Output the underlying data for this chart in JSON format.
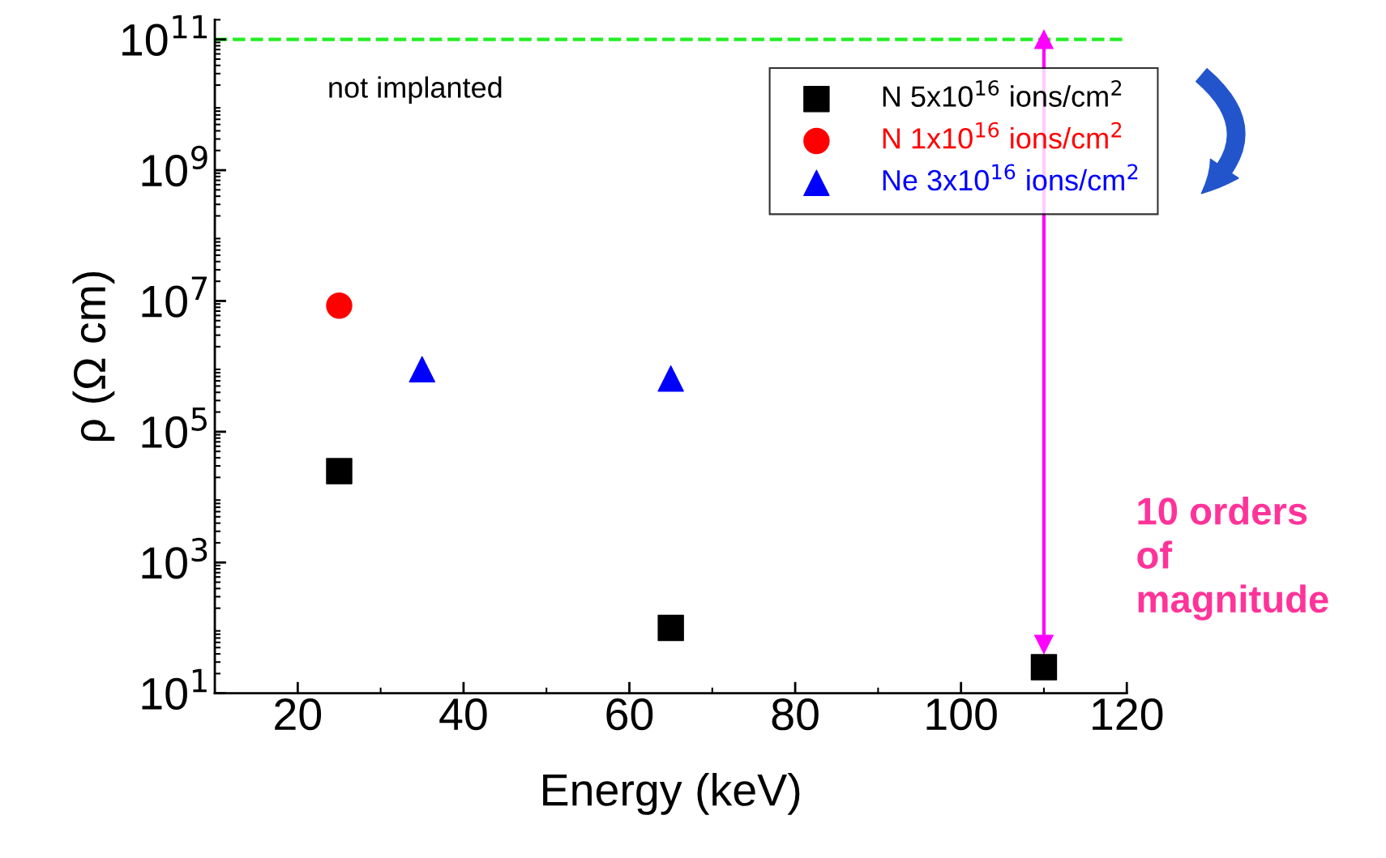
{
  "chart_data": {
    "type": "scatter",
    "xlabel": "Energy (keV)",
    "ylabel": "ρ (Ω cm)",
    "log": "y",
    "xlim": [
      10,
      120
    ],
    "xticks": [
      20,
      40,
      60,
      80,
      100,
      120
    ],
    "ylim": [
      10,
      200000000000
    ],
    "yticks": [
      {
        "value": 10,
        "label": "10$^{1}$"
      },
      {
        "value": 1000,
        "label": "10$^{3}$"
      },
      {
        "value": 100000,
        "label": "10$^{5}$"
      },
      {
        "value": 10000000,
        "label": "10$^{7}$"
      },
      {
        "value": 1000000000,
        "label": "10$^{9}$"
      },
      {
        "value": 100000000000,
        "label": "10$^{11}$"
      }
    ],
    "series": [
      {
        "name": "N 5x10$^{16}$ ions/cm$^{2}$",
        "color": "#000000",
        "marker": "square",
        "x": [
          25,
          65,
          110
        ],
        "values": [
          25000,
          100,
          25
        ]
      },
      {
        "name": "N 1x10$^{16}$ ions/cm$^{2}$",
        "color": "#ff0000",
        "marker": "circle",
        "x": [
          25
        ],
        "values": [
          8500000
        ]
      },
      {
        "name": "Ne 3x10$^{16}$ ions/cm$^{2}$",
        "color": "#0000ff",
        "marker": "triangle",
        "x": [
          35,
          65
        ],
        "values": [
          900000,
          650000
        ]
      },
      {
        "type": "line",
        "color": "#ff00ff",
        "marker": "triangle",
        "x": [
          110,
          110
        ],
        "values": [
          100000000000,
          56
        ]
      }
    ],
    "ref_lines": [
      {
        "axis": "y",
        "value": 100000000000,
        "label": "not implanted",
        "color": "#22ee22",
        "line_style": "dashed"
      }
    ],
    "annotations": [
      "10 orders\nof\nmagnitude"
    ],
    "legend": "top right",
    "grid": false
  }
}
